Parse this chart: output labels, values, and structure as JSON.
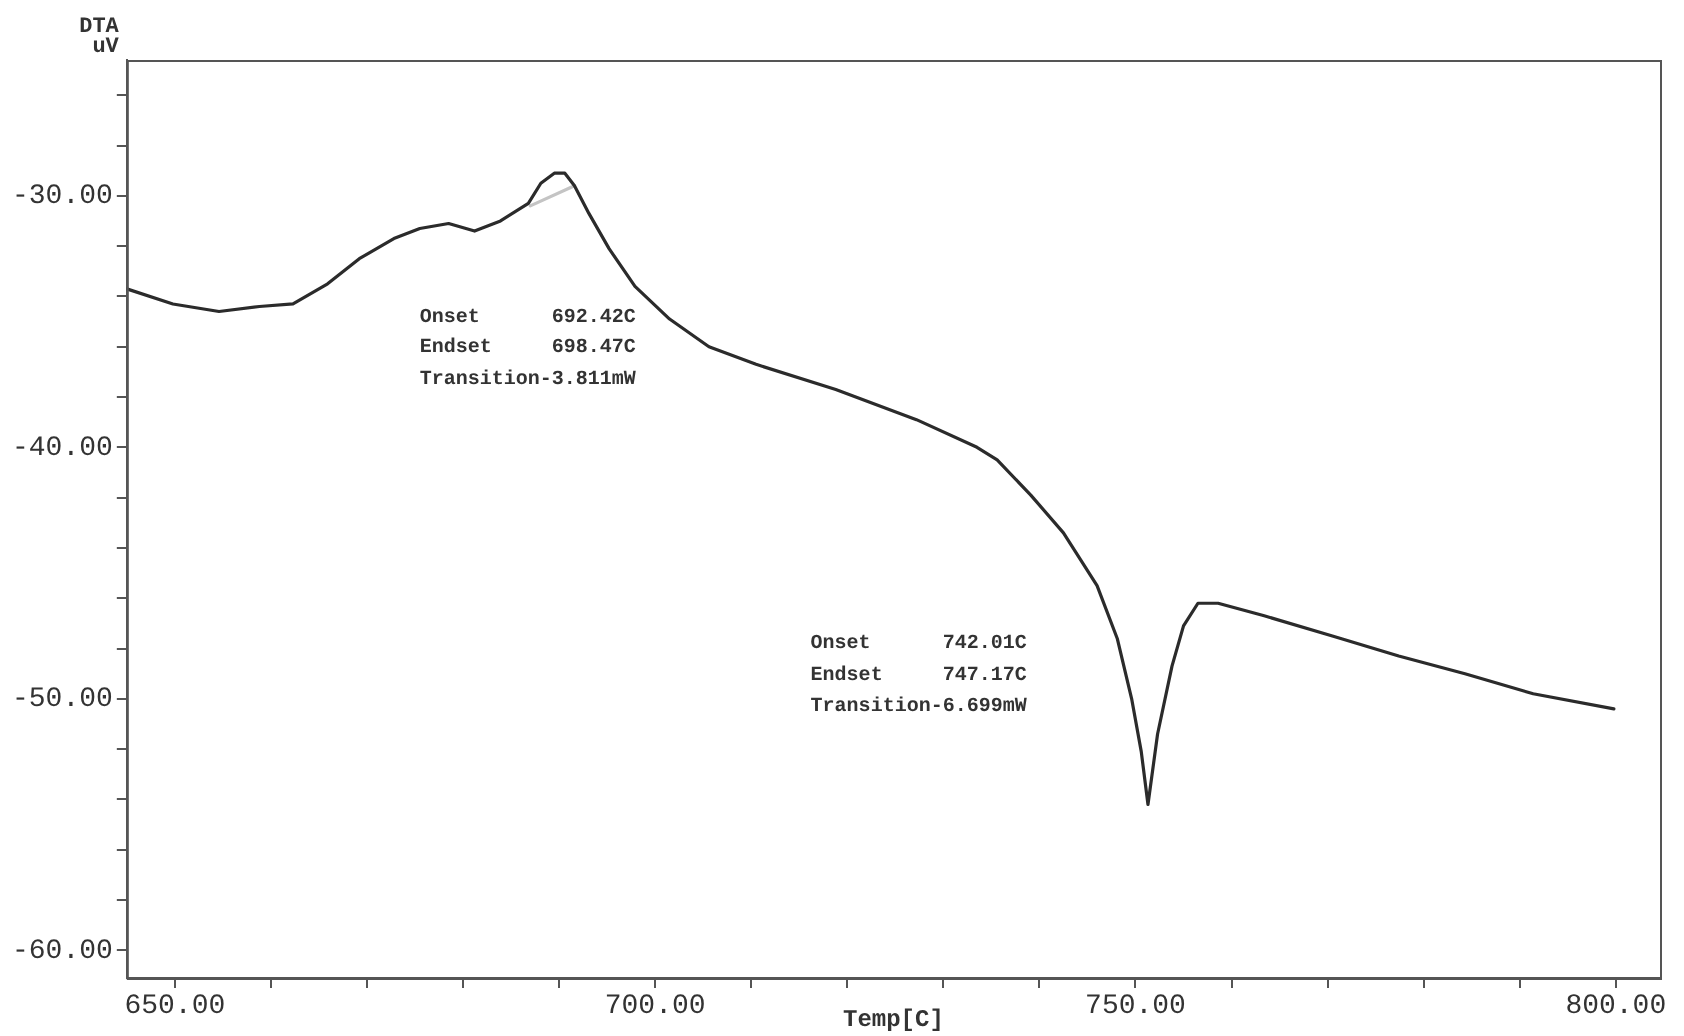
{
  "chart_data": {
    "type": "line",
    "xlabel": "Temp[C]",
    "ylabel": "DTA\nuV",
    "series": [
      {
        "color": "#2b2b2b",
        "x": [
          645.0,
          649.8,
          654.6,
          658.8,
          662.3,
          665.9,
          669.2,
          672.8,
          675.5,
          678.5,
          681.2,
          683.9,
          686.8,
          688.1,
          689.5,
          690.6,
          691.6,
          693.1,
          695.2,
          697.9,
          701.5,
          705.6,
          710.5,
          718.8,
          727.2,
          733.5,
          735.6,
          739.1,
          742.5,
          746.0,
          748.1,
          749.6,
          750.6,
          751.3,
          752.3,
          753.8,
          755.0,
          756.5,
          758.6,
          763.4,
          770.5,
          777.4,
          784.3,
          791.4,
          799.8
        ],
        "values": [
          -33.7,
          -34.3,
          -34.6,
          -34.4,
          -34.3,
          -33.5,
          -32.5,
          -31.7,
          -31.3,
          -31.1,
          -31.4,
          -31.0,
          -30.3,
          -29.5,
          -29.1,
          -29.1,
          -29.6,
          -30.7,
          -32.1,
          -33.6,
          -34.9,
          -36.0,
          -36.7,
          -37.7,
          -38.9,
          -40.0,
          -40.5,
          -41.9,
          -43.4,
          -45.5,
          -47.6,
          -50.0,
          -52.1,
          -54.2,
          -51.4,
          -48.7,
          -47.1,
          -46.2,
          -46.2,
          -46.7,
          -47.5,
          -48.3,
          -49.0,
          -49.8,
          -50.4
        ]
      },
      {
        "color": "#c4c4c4",
        "x": [
          687.0,
          691.6
        ],
        "values": [
          -30.4,
          -29.6
        ]
      }
    ],
    "xlim": [
      645,
      804.6
    ],
    "ylim": [
      -61.1,
      -24.6
    ],
    "xticks": [
      {
        "value": 650,
        "label": "650.00"
      },
      {
        "value": 660,
        "label": null
      },
      {
        "value": 670,
        "label": null
      },
      {
        "value": 680,
        "label": null
      },
      {
        "value": 690,
        "label": null
      },
      {
        "value": 700,
        "label": "700.00"
      },
      {
        "value": 710,
        "label": null
      },
      {
        "value": 720,
        "label": null
      },
      {
        "value": 730,
        "label": null
      },
      {
        "value": 740,
        "label": null
      },
      {
        "value": 750,
        "label": "750.00"
      },
      {
        "value": 760,
        "label": null
      },
      {
        "value": 770,
        "label": null
      },
      {
        "value": 780,
        "label": null
      },
      {
        "value": 790,
        "label": null
      },
      {
        "value": 800,
        "label": "800.00"
      }
    ],
    "yticks": [
      {
        "value": -26,
        "label": null
      },
      {
        "value": -28,
        "label": null
      },
      {
        "value": -30,
        "label": "-30.00"
      },
      {
        "value": -32,
        "label": null
      },
      {
        "value": -34,
        "label": null
      },
      {
        "value": -36,
        "label": null
      },
      {
        "value": -38,
        "label": null
      },
      {
        "value": -40,
        "label": "-40.00"
      },
      {
        "value": -42,
        "label": null
      },
      {
        "value": -44,
        "label": null
      },
      {
        "value": -46,
        "label": null
      },
      {
        "value": -48,
        "label": null
      },
      {
        "value": -50,
        "label": "-50.00"
      },
      {
        "value": -52,
        "label": null
      },
      {
        "value": -54,
        "label": null
      },
      {
        "value": -56,
        "label": null
      },
      {
        "value": -58,
        "label": null
      },
      {
        "value": -60,
        "label": "-60.00"
      }
    ],
    "annotations": [
      "Onset      692.42C",
      "Endset     698.47C",
      "Transition-3.811mW",
      "Onset      742.01C",
      "Endset     747.17C",
      "Transition-6.699mW"
    ],
    "grid": false,
    "marker": "none",
    "line_style": "solid"
  }
}
